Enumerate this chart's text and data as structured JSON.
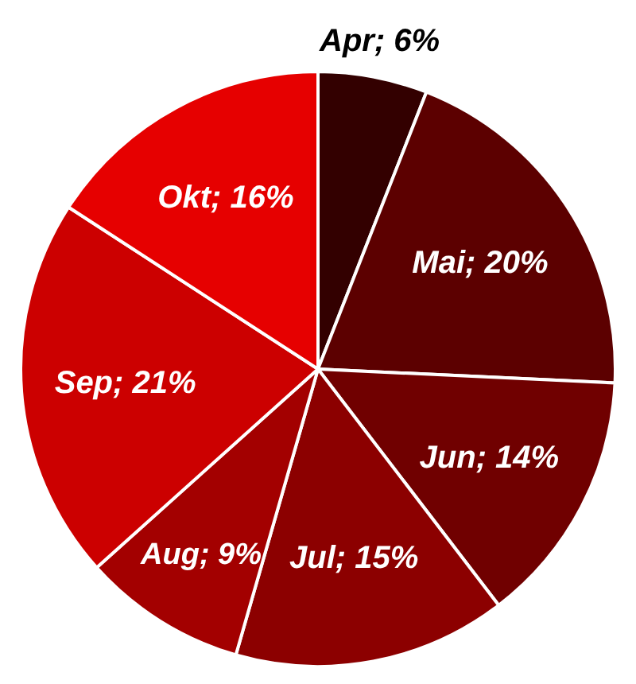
{
  "chart_data": {
    "type": "pie",
    "categories": [
      "Apr",
      "Mai",
      "Jun",
      "Jul",
      "Aug",
      "Sep",
      "Okt"
    ],
    "values": [
      6,
      20,
      14,
      15,
      9,
      21,
      16
    ],
    "colors": [
      "#330000",
      "#5c0000",
      "#700000",
      "#8c0000",
      "#a30000",
      "#cc0000",
      "#e60000"
    ],
    "value_labels": [
      "6%",
      "20%",
      "14%",
      "15%",
      "9%",
      "21%",
      "16%"
    ],
    "legend": false
  }
}
